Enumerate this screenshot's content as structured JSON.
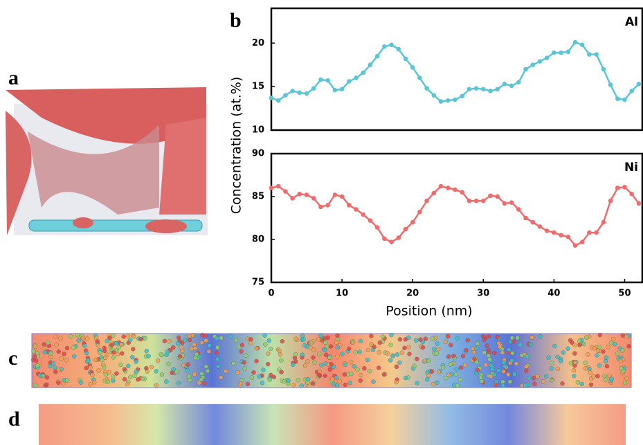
{
  "panel_labels": [
    "a",
    "b",
    "c",
    "d"
  ],
  "chart_data": [
    {
      "type": "line",
      "ylabel": "Concentration (at.%)",
      "x": [
        0,
        1,
        2,
        3,
        4,
        5,
        6,
        7,
        8,
        9,
        10,
        11,
        12,
        13,
        14,
        15,
        16,
        17,
        18,
        19,
        20,
        21,
        22,
        23,
        24,
        25,
        26,
        27,
        28,
        29,
        30,
        31,
        32,
        33,
        34,
        35,
        36,
        37,
        38,
        39,
        40,
        41,
        42,
        43,
        44,
        45,
        46,
        47,
        48,
        49,
        50,
        51,
        52
      ],
      "series": [
        {
          "name": "Al",
          "color": "#5bc5d8",
          "values": [
            13.7,
            13.4,
            14.0,
            14.5,
            14.3,
            14.2,
            14.8,
            15.8,
            15.7,
            14.6,
            14.7,
            15.6,
            16.0,
            16.6,
            17.5,
            18.5,
            19.6,
            19.8,
            19.3,
            18.2,
            17.2,
            16.0,
            14.8,
            14.0,
            13.3,
            13.4,
            13.5,
            13.9,
            14.7,
            14.8,
            14.7,
            14.5,
            14.7,
            15.3,
            15.1,
            15.5,
            17.0,
            17.5,
            17.9,
            18.3,
            18.9,
            18.9,
            19.0,
            20.1,
            19.8,
            18.7,
            18.7,
            17.0,
            15.2,
            13.6,
            13.5,
            14.5,
            15.3
          ]
        }
      ],
      "xlim": [
        0,
        52.5
      ],
      "ylim": [
        10,
        24
      ],
      "yticks": [
        10,
        15,
        20
      ]
    },
    {
      "type": "line",
      "xlabel": "Position (nm)",
      "x": [
        0,
        1,
        2,
        3,
        4,
        5,
        6,
        7,
        8,
        9,
        10,
        11,
        12,
        13,
        14,
        15,
        16,
        17,
        18,
        19,
        20,
        21,
        22,
        23,
        24,
        25,
        26,
        27,
        28,
        29,
        30,
        31,
        32,
        33,
        34,
        35,
        36,
        37,
        38,
        39,
        40,
        41,
        42,
        43,
        44,
        45,
        46,
        47,
        48,
        49,
        50,
        51,
        52
      ],
      "series": [
        {
          "name": "Ni",
          "color": "#f06b6b",
          "values": [
            86.0,
            86.2,
            85.6,
            84.8,
            85.3,
            85.2,
            84.8,
            83.8,
            84.0,
            85.2,
            85.0,
            84.0,
            83.5,
            82.9,
            82.2,
            81.4,
            80.1,
            79.7,
            80.2,
            81.2,
            82.0,
            83.2,
            84.5,
            85.4,
            86.2,
            86.0,
            85.8,
            85.5,
            84.5,
            84.5,
            84.5,
            85.1,
            85.0,
            84.2,
            84.3,
            83.5,
            82.5,
            82.0,
            81.5,
            81.0,
            80.8,
            80.5,
            80.3,
            79.3,
            79.7,
            80.8,
            80.8,
            82.0,
            84.5,
            86.0,
            86.1,
            85.3,
            84.2
          ]
        }
      ],
      "xlim": [
        0,
        52.5
      ],
      "ylim": [
        75,
        90
      ],
      "yticks": [
        75,
        80,
        85,
        90
      ],
      "xticks": [
        0,
        10,
        20,
        30,
        40,
        50
      ]
    }
  ]
}
